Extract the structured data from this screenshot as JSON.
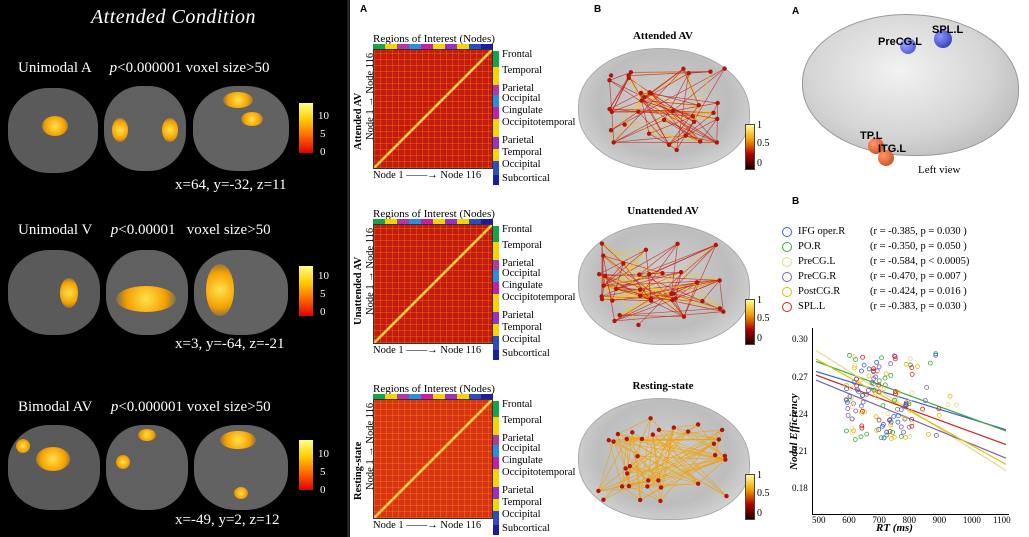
{
  "left": {
    "title": "Attended  Condition",
    "rows": [
      {
        "name": "Unimodal A",
        "p": "p",
        "pval": "<0.000001",
        "voxel": " voxel size>50",
        "coords": "x=64, y=-32, z=11"
      },
      {
        "name": "Unimodal V",
        "p": "p",
        "pval": "<0.00001",
        "voxel": "   voxel size>50",
        "coords": "x=3, y=-64, z=-21"
      },
      {
        "name": "Bimodal AV",
        "p": "p",
        "pval": "<0.000001",
        "voxel": " voxel size>50",
        "coords": "x=-49, y=2, z=12"
      }
    ],
    "colorbar": {
      "top": "10",
      "mid": "5",
      "bottom": "0"
    }
  },
  "middle": {
    "label_a": "A",
    "label_b": "B",
    "matrix_title": "Regions of Interest (Nodes)",
    "node_start": "Node 1",
    "node_end": "Node 116",
    "rois": [
      "Frontal",
      "Temporal",
      "Parietal",
      "Occipital",
      "Cingulate",
      "Occipitotemporal",
      "Parietal",
      "Temporal",
      "Occipital",
      "Subcortical"
    ],
    "conditions": [
      "Attended AV",
      "Unattended AV",
      "Resting-state"
    ],
    "cbar": {
      "top": "1",
      "mid": "0.5",
      "bottom": "0"
    }
  },
  "right": {
    "label_a": "A",
    "label_b": "B",
    "regions": [
      "PreCG.L",
      "SPL.L",
      "TP.L",
      "ITG.L"
    ],
    "view": "Left view",
    "legend": [
      {
        "name": "IFG oper.R",
        "stat": "(r = -0.385,  p = 0.030  )",
        "color": "#3a5fcd"
      },
      {
        "name": "PO.R",
        "stat": "(r = -0.350,  p = 0.050  )",
        "color": "#3aa63a"
      },
      {
        "name": "PreCG.L",
        "stat": "(r = -0.584,  p < 0.0005)",
        "color": "#e6d98a"
      },
      {
        "name": "PreCG.R",
        "stat": "(r = -0.470,  p = 0.007  )",
        "color": "#7a5fb0"
      },
      {
        "name": "PostCG.R",
        "stat": "(r = -0.424,  p = 0.016  )",
        "color": "#e0c000"
      },
      {
        "name": "SPL.L",
        "stat": "(r = -0.383,  p = 0.030  )",
        "color": "#cc2222"
      }
    ],
    "chart": {
      "xlabel": "RT (ms)",
      "ylabel": "Nodal Efficiency",
      "xticks": [
        "500",
        "600",
        "700",
        "800",
        "900",
        "1000",
        "1100"
      ],
      "yticks": [
        "0.30",
        "0.27",
        "0.24",
        "0.21",
        "0.18"
      ]
    }
  }
}
